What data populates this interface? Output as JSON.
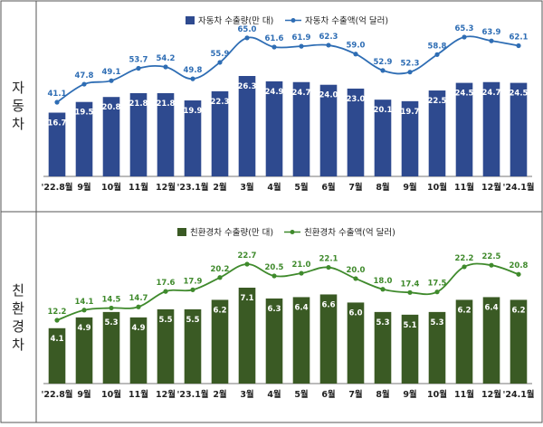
{
  "chart_data": [
    {
      "type": "bar",
      "side_label": "자동차",
      "categories": [
        "'22.8월",
        "9월",
        "10월",
        "11월",
        "12월",
        "'23.1월",
        "2월",
        "3월",
        "4월",
        "5월",
        "6월",
        "7월",
        "8월",
        "9월",
        "10월",
        "11월",
        "12월",
        "'24.1월"
      ],
      "series": [
        {
          "name": "자동차 수출량(만 대)",
          "type": "bar",
          "color": "#2e4a8f",
          "values": [
            16.7,
            19.5,
            20.8,
            21.8,
            21.8,
            19.9,
            22.3,
            26.3,
            24.9,
            24.7,
            24.0,
            23.0,
            20.1,
            19.7,
            22.5,
            24.5,
            24.7,
            24.5
          ]
        },
        {
          "name": "자동차 수출액(억 달러)",
          "type": "line",
          "color": "#2e6db4",
          "values": [
            41.1,
            47.8,
            49.1,
            53.7,
            54.2,
            49.8,
            55.9,
            65.0,
            61.6,
            61.9,
            62.3,
            59.0,
            52.9,
            52.3,
            58.8,
            65.3,
            63.9,
            62.1
          ]
        }
      ],
      "legend_position": "top-right",
      "grid": false
    },
    {
      "type": "bar",
      "side_label": "친환경차",
      "categories": [
        "'22.8월",
        "9월",
        "10월",
        "11월",
        "12월",
        "'23.1월",
        "2월",
        "3월",
        "4월",
        "5월",
        "6월",
        "7월",
        "8월",
        "9월",
        "10월",
        "11월",
        "12월",
        "'24.1월"
      ],
      "series": [
        {
          "name": "친환경차 수출량(만 대)",
          "type": "bar",
          "color": "#3a5a24",
          "values": [
            4.1,
            4.9,
            5.3,
            4.9,
            5.5,
            5.5,
            6.2,
            7.1,
            6.3,
            6.4,
            6.6,
            6.0,
            5.3,
            5.1,
            5.3,
            6.2,
            6.4,
            6.2
          ]
        },
        {
          "name": "친환경차 수출액(억 달러)",
          "type": "line",
          "color": "#3f8a2c",
          "values": [
            12.2,
            14.1,
            14.5,
            14.7,
            17.6,
            17.9,
            20.2,
            22.7,
            20.5,
            21.0,
            22.1,
            20.0,
            18.0,
            17.4,
            17.5,
            22.2,
            22.5,
            20.8
          ]
        }
      ],
      "legend_position": "top-right",
      "grid": false
    }
  ]
}
